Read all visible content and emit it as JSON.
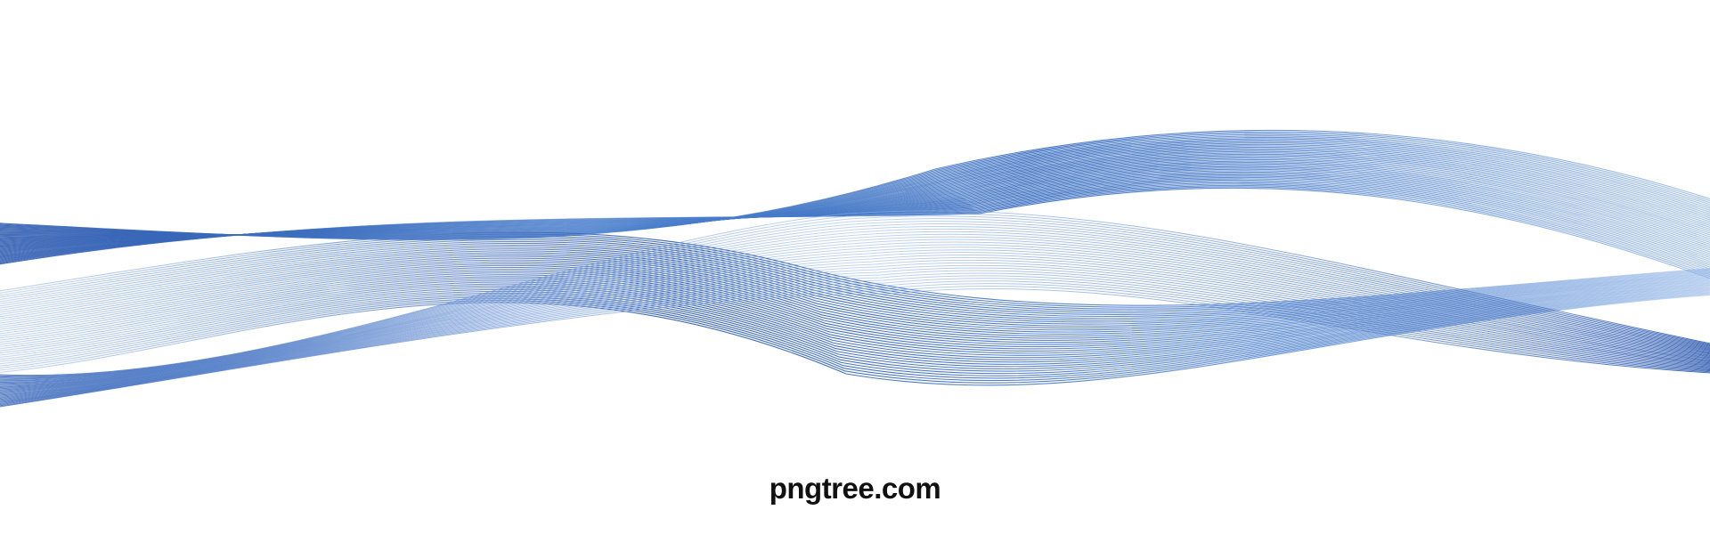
{
  "artwork": {
    "watermark_text": "pngtree.com",
    "colors": {
      "background": "#ffffff",
      "wave_dark": "#2f5bb0",
      "wave_mid": "#4a7fcc",
      "wave_light": "#8fb3e6",
      "watermark": "#111111"
    }
  }
}
